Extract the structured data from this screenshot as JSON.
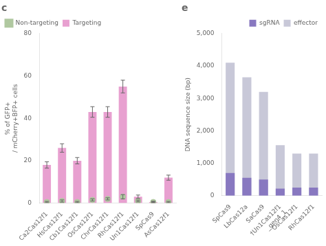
{
  "chart_data": [
    {
      "type": "bar",
      "title": "c",
      "categories": [
        "Ca2Cas12f1",
        "HsCas12f1",
        "Cb1Cas12f1",
        "OsCas12f1",
        "ChrCas12f1",
        "RhCas12f1",
        "Un1Cas12f1",
        "SpCas9",
        "AsCas12f1"
      ],
      "series": [
        {
          "name": "Non-targeting",
          "type": "scatter",
          "color": "#b0c8a0",
          "values": [
            0.5,
            1.0,
            0.5,
            1.5,
            2.0,
            3.0,
            1.0,
            0.5,
            0.5
          ],
          "errors": [
            0.3,
            0.5,
            0.3,
            0.5,
            0.5,
            1.0,
            0.4,
            0.3,
            0.3
          ]
        },
        {
          "name": "Targeting",
          "type": "bar",
          "color": "#e8a0d0",
          "values": [
            18,
            26,
            20,
            43,
            43,
            55,
            3,
            0.5,
            12
          ],
          "errors": [
            1.5,
            2.0,
            1.5,
            2.5,
            2.5,
            3.0,
            0.8,
            0.3,
            1.2
          ]
        }
      ],
      "ylabel": "% of GFP+\n/ mCherry+BFP+ cells",
      "ylim": [
        0,
        80
      ],
      "yticks": [
        0,
        20,
        40,
        60,
        80
      ],
      "grid": false,
      "legend": "upper left"
    },
    {
      "type": "bar",
      "title": "e",
      "categories": [
        "SpCas9",
        "LbCas12a",
        "SaCas9",
        "†Un1Cas12f1\n_gen4_1",
        "OsCas12f1",
        "RhCas12f1"
      ],
      "series": [
        {
          "name": "sgRNA",
          "color": "#8878c0",
          "values": [
            700,
            550,
            500,
            220,
            250,
            250
          ]
        },
        {
          "name": "effector",
          "color": "#c8c8d8",
          "values": [
            4100,
            3650,
            3200,
            1560,
            1300,
            1300
          ]
        }
      ],
      "ylabel": "DNA sequence size (bp)",
      "ylim": [
        0,
        5000
      ],
      "yticks": [
        0,
        1000,
        2000,
        3000,
        4000,
        5000
      ],
      "grid": false,
      "legend": "upper right"
    }
  ]
}
